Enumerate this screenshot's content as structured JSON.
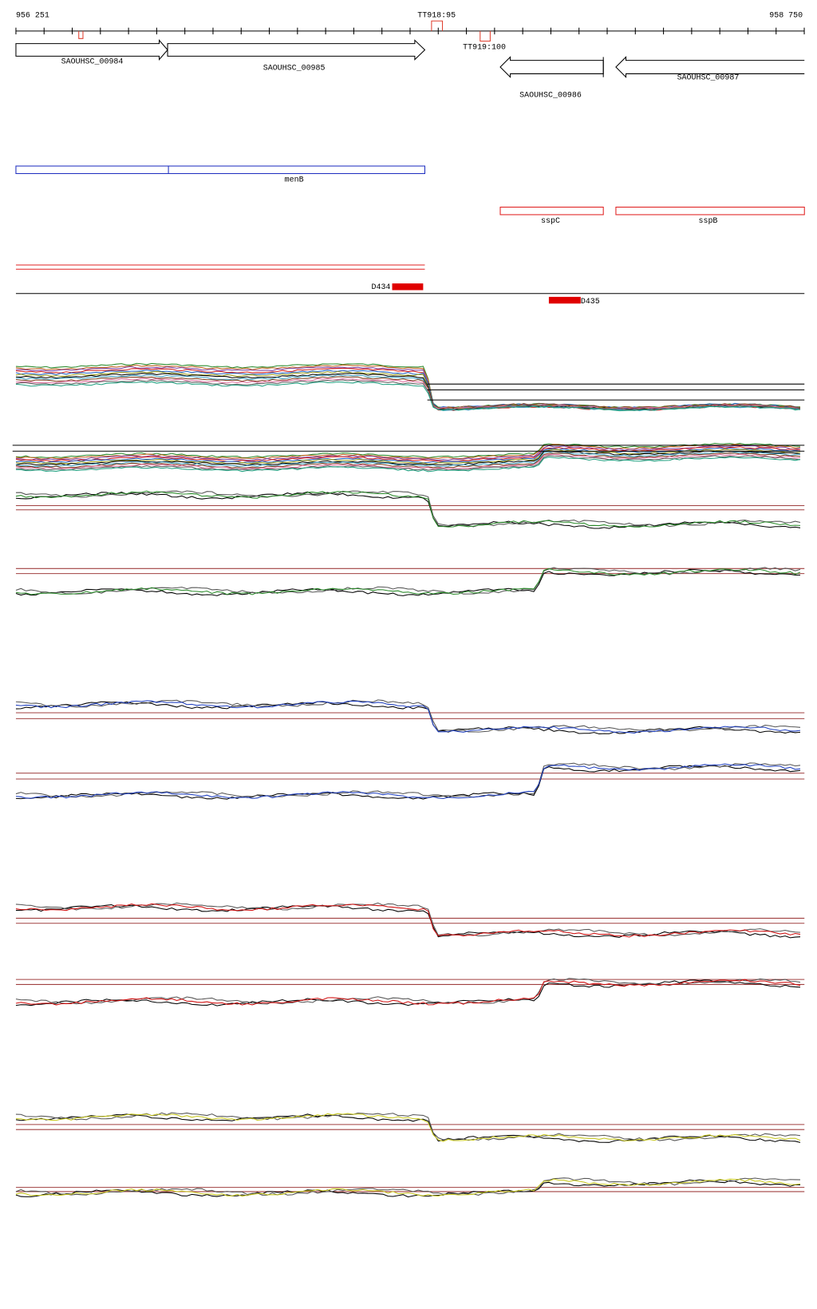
{
  "ruler": {
    "start": "956 251",
    "end": "958 750"
  },
  "terminators": [
    {
      "label": "TT918:95"
    },
    {
      "label": "TT919:100"
    }
  ],
  "genes": [
    {
      "label": "SAOUHSC_00984"
    },
    {
      "label": "SAOUHSC_00985"
    },
    {
      "label": "SAOUHSC_00986"
    },
    {
      "label": "SAOUHSC_00987"
    }
  ],
  "operons": [
    {
      "label": "menB"
    },
    {
      "label": "sspC"
    },
    {
      "label": "sspB"
    }
  ],
  "features": [
    {
      "label": "D434"
    },
    {
      "label": "D435"
    }
  ]
}
